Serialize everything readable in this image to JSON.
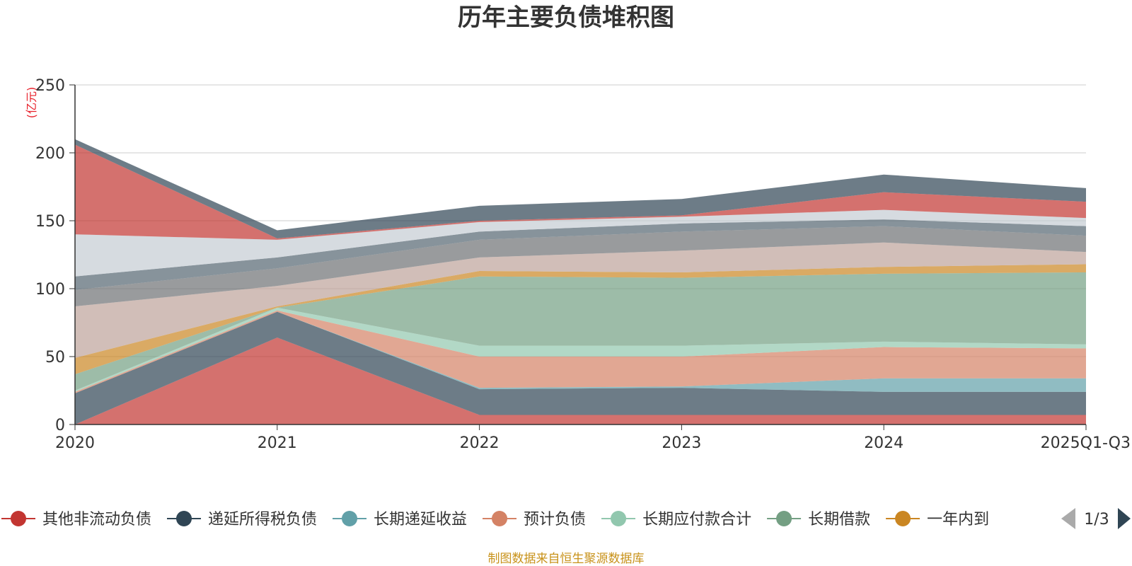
{
  "chart_data": {
    "type": "area",
    "stacked": true,
    "title": "历年主要负债堆积图",
    "unit_label": "(亿元)",
    "categories": [
      "2020",
      "2021",
      "2022",
      "2023",
      "2024",
      "2025Q1-Q3"
    ],
    "y_ticks": [
      "0",
      "50",
      "100",
      "150",
      "200",
      "250"
    ],
    "ylim": [
      0,
      250
    ],
    "grid": true,
    "legend_position": "bottom",
    "legend_page": "1/3",
    "series": [
      {
        "name": "其他非流动负债",
        "color": "#c23531",
        "values": [
          0,
          64,
          7,
          7,
          7,
          7
        ]
      },
      {
        "name": "递延所得税负债",
        "color": "#2f4554",
        "values": [
          23,
          19,
          19,
          20,
          17,
          17
        ]
      },
      {
        "name": "长期递延收益",
        "color": "#61a0a8",
        "values": [
          0,
          0,
          1,
          1,
          10,
          10
        ]
      },
      {
        "name": "预计负债",
        "color": "#d48265",
        "values": [
          1,
          1,
          23,
          22,
          23,
          22
        ]
      },
      {
        "name": "长期应付款合计",
        "color": "#91c7ae",
        "values": [
          1,
          2,
          8,
          8,
          4,
          3
        ]
      },
      {
        "name": "长期借款",
        "color": "#749f83",
        "values": [
          12,
          0,
          51,
          50,
          50,
          53
        ]
      },
      {
        "name": "一年内到",
        "color": "#ca8622",
        "values": [
          12,
          1,
          4,
          4,
          5,
          6
        ]
      },
      {
        "color": "#bda29a",
        "values": [
          38,
          15,
          10,
          16,
          18,
          9
        ]
      },
      {
        "color": "#6e7074",
        "values": [
          12,
          13,
          13,
          14,
          12,
          12
        ]
      },
      {
        "color": "#546570",
        "values": [
          10,
          8,
          6,
          6,
          5,
          7
        ]
      },
      {
        "color": "#c4ccd3",
        "values": [
          31,
          13,
          7,
          5,
          7,
          6
        ]
      },
      {
        "color": "#c23531",
        "values": [
          66,
          1,
          1,
          1,
          13,
          12
        ]
      },
      {
        "color": "#2f4554",
        "values": [
          4,
          6,
          11,
          12,
          13,
          10
        ]
      }
    ]
  },
  "source_note": "制图数据来自恒生聚源数据库"
}
